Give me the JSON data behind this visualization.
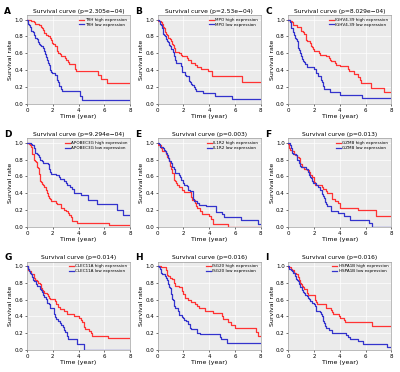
{
  "panels": [
    {
      "label": "A",
      "title": "Survival curve (p=2.305e−04)",
      "gene": "TRH",
      "high_label": "TRH high expression",
      "low_label": "TRH low expression",
      "high_better": true,
      "seed": 10,
      "scale_high": 4.8,
      "scale_low": 2.0,
      "n_high": 60,
      "n_low": 60,
      "shape_high": 1.1,
      "shape_low": 1.2
    },
    {
      "label": "B",
      "title": "Survival curve (p=2.53e−04)",
      "gene": "MPO",
      "high_label": "MPO high expression",
      "low_label": "MPO low expression",
      "high_better": true,
      "seed": 20,
      "scale_high": 4.6,
      "scale_low": 2.1,
      "n_high": 60,
      "n_low": 60,
      "shape_high": 1.1,
      "shape_low": 1.2
    },
    {
      "label": "C",
      "title": "Survival curve (p=8.029e−04)",
      "gene": "IGHV4-39",
      "high_label": "IGHV4-39 high expression",
      "low_label": "IGHV4-39 low expression",
      "high_better": true,
      "seed": 30,
      "scale_high": 4.7,
      "scale_low": 2.1,
      "n_high": 60,
      "n_low": 60,
      "shape_high": 1.1,
      "shape_low": 1.2
    },
    {
      "label": "D",
      "title": "Survival curve (p=9.294e−04)",
      "gene": "APOBEC3G",
      "high_label": "APOBEC3G high expression",
      "low_label": "APOBEC3G low expression",
      "high_better": false,
      "seed": 40,
      "scale_high": 2.2,
      "scale_low": 4.2,
      "n_high": 60,
      "n_low": 60,
      "shape_high": 1.2,
      "shape_low": 1.0
    },
    {
      "label": "E",
      "title": "Survival curve (p=0.003)",
      "gene": "IL1R2",
      "high_label": "IL1R2 high expression",
      "low_label": "IL1R2 low expression",
      "high_better": false,
      "seed": 50,
      "scale_high": 2.5,
      "scale_low": 4.0,
      "n_high": 60,
      "n_low": 60,
      "shape_high": 1.2,
      "shape_low": 1.0
    },
    {
      "label": "F",
      "title": "Survival curve (p=0.013)",
      "gene": "GZMB",
      "high_label": "GZMB high expression",
      "low_label": "GZMB low expression",
      "high_better": true,
      "seed": 60,
      "scale_high": 4.5,
      "scale_low": 2.5,
      "n_high": 60,
      "n_low": 60,
      "shape_high": 1.1,
      "shape_low": 1.2
    },
    {
      "label": "G",
      "title": "Survival curve (p=0.014)",
      "gene": "CLEC11A",
      "high_label": "CLEC11A high expression",
      "low_label": "CLEC11A low expression",
      "high_better": true,
      "seed": 70,
      "scale_high": 4.4,
      "scale_low": 2.4,
      "n_high": 60,
      "n_low": 60,
      "shape_high": 1.1,
      "shape_low": 1.2
    },
    {
      "label": "H",
      "title": "Survival curve (p=0.016)",
      "gene": "ISG20",
      "high_label": "ISG20 high expression",
      "low_label": "ISG20 low expression",
      "high_better": true,
      "seed": 80,
      "scale_high": 4.3,
      "scale_low": 2.5,
      "n_high": 60,
      "n_low": 60,
      "shape_high": 1.1,
      "shape_low": 1.2
    },
    {
      "label": "I",
      "title": "Survival curve (p=0.016)",
      "gene": "HSPA1B",
      "high_label": "HSPA1B high expression",
      "low_label": "HSPA1B low expression",
      "high_better": true,
      "seed": 90,
      "scale_high": 4.3,
      "scale_low": 2.5,
      "n_high": 60,
      "n_low": 60,
      "shape_high": 1.1,
      "shape_low": 1.2
    }
  ],
  "high_color": "#FF3333",
  "low_color": "#3333CC",
  "ylabel": "Survival rate",
  "xlabel": "Time (year)",
  "ytick_labels": [
    "0.0",
    "0.2",
    "0.4",
    "0.6",
    "0.8",
    "1.0"
  ],
  "yticks": [
    0.0,
    0.2,
    0.4,
    0.6,
    0.8,
    1.0
  ],
  "xticks": [
    0,
    2,
    4,
    6,
    8
  ],
  "xlim": [
    0,
    8
  ],
  "ylim": [
    0.0,
    1.05
  ],
  "bg_color": "#EBEBEB"
}
